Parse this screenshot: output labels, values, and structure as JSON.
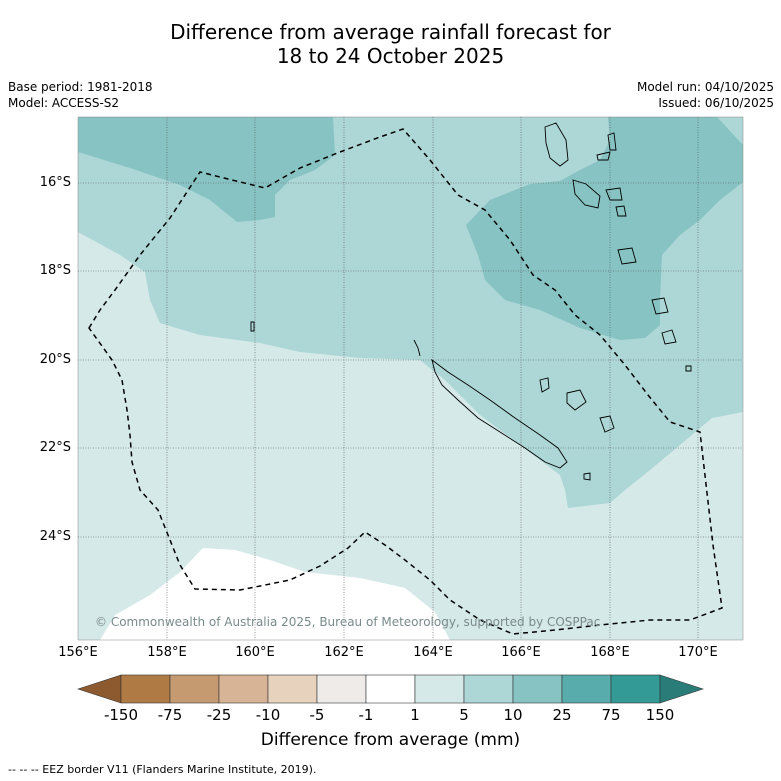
{
  "title": {
    "line1": "Difference from average rainfall forecast for",
    "line2": "18 to 24 October 2025"
  },
  "meta": {
    "base_period": "Base period: 1981-2018",
    "model": "Model: ACCESS-S2",
    "model_run": "Model run: 04/10/2025",
    "issued": "Issued: 06/10/2025"
  },
  "map": {
    "copyright": "© Commonwealth of Australia 2025, Bureau of Meteorology, supported by COSPPac",
    "lat_labels": [
      "16°S",
      "18°S",
      "20°S",
      "22°S",
      "24°S"
    ],
    "lon_labels": [
      "156°E",
      "158°E",
      "160°E",
      "162°E",
      "164°E",
      "166°E",
      "168°E",
      "170°E"
    ]
  },
  "colorbar": {
    "title": "Difference from average (mm)",
    "ticks": [
      "-150",
      "-75",
      "-25",
      "-10",
      "-5",
      "-1",
      "1",
      "5",
      "10",
      "25",
      "75",
      "150"
    ],
    "colors": {
      "lt_-150": "#8c5a2e",
      "-150_-75": "#b07a45",
      "-75_-25": "#c69a70",
      "-25_-10": "#d8b496",
      "-10_-5": "#e7d2be",
      "-5_-1": "#efebe8",
      "-1_1": "#ffffff",
      "1_5": "#d4e9e8",
      "5_10": "#add6d6",
      "10_25": "#87c3c2",
      "25_75": "#58acab",
      "75_150": "#339a96",
      "gt_150": "#2a7c78"
    }
  },
  "footnote": "-- -- -- EEZ border V11 (Flanders Marine Institute, 2019)."
}
